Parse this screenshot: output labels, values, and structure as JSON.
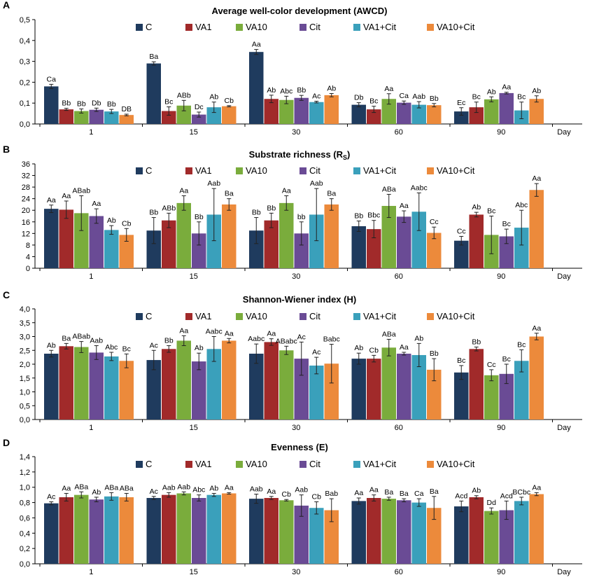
{
  "colors": {
    "C": "#1f3b5e",
    "VA1": "#a12a2a",
    "VA10": "#7aac3c",
    "Cit": "#6a4b95",
    "VA1+Cit": "#3aa0bb",
    "VA10+Cit": "#ec8a3b"
  },
  "chart_data": [
    {
      "panel": "A",
      "type": "bar",
      "title": "Average well-color development (AWCD)",
      "title_sub": "",
      "title_after": "",
      "categories": [
        "1",
        "15",
        "30",
        "60",
        "90"
      ],
      "xlabel": "Day",
      "ylim": [
        0,
        0.5
      ],
      "yticks": [
        "0,0",
        "0,1",
        "0,2",
        "0,3",
        "0,4",
        "0,5"
      ],
      "series": [
        {
          "name": "C",
          "values": [
            0.18,
            0.29,
            0.345,
            0.092,
            0.06
          ],
          "errors": [
            0.01,
            0.008,
            0.012,
            0.01,
            0.018
          ],
          "labels": [
            "Ca",
            "Ba",
            "Aa",
            "Db",
            "Ec"
          ]
        },
        {
          "name": "VA1",
          "values": [
            0.07,
            0.062,
            0.12,
            0.07,
            0.08
          ],
          "errors": [
            0.005,
            0.02,
            0.018,
            0.015,
            0.025
          ],
          "labels": [
            "Bb",
            "Bc",
            "Ab",
            "Bc",
            "Bc"
          ]
        },
        {
          "name": "VA10",
          "values": [
            0.062,
            0.088,
            0.115,
            0.12,
            0.118
          ],
          "errors": [
            0.01,
            0.025,
            0.018,
            0.025,
            0.012
          ],
          "labels": [
            "Bb",
            "ABb",
            "Abc",
            "Aa",
            "Ab"
          ]
        },
        {
          "name": "Cit",
          "values": [
            0.068,
            0.045,
            0.125,
            0.102,
            0.148
          ],
          "errors": [
            0.008,
            0.012,
            0.012,
            0.008,
            0.004
          ],
          "labels": [
            "Db",
            "Dc",
            "Bb",
            "Ca",
            "Aa"
          ]
        },
        {
          "name": "VA1+Cit",
          "values": [
            0.06,
            0.08,
            0.105,
            0.092,
            0.065
          ],
          "errors": [
            0.01,
            0.025,
            0.004,
            0.015,
            0.04
          ],
          "labels": [
            "Bb",
            "Ab",
            "Ac",
            "Aab",
            "Bc"
          ]
        },
        {
          "name": "VA10+Cit",
          "values": [
            0.043,
            0.085,
            0.138,
            0.09,
            0.12
          ],
          "errors": [
            0.004,
            0.003,
            0.008,
            0.008,
            0.015
          ],
          "labels": [
            "DB",
            "Cb",
            "Ab",
            "Bb",
            "Ab"
          ]
        }
      ]
    },
    {
      "panel": "B",
      "type": "bar",
      "title": "Substrate richness (R",
      "title_sub": "S",
      "title_after": ")",
      "categories": [
        "1",
        "15",
        "30",
        "60",
        "90"
      ],
      "xlabel": "Day",
      "ylim": [
        0,
        36
      ],
      "yticks": [
        "0",
        "4",
        "8",
        "12",
        "16",
        "20",
        "24",
        "28",
        "32",
        "36"
      ],
      "series": [
        {
          "name": "C",
          "values": [
            20.5,
            13,
            13,
            14.5,
            9.5
          ],
          "errors": [
            1.3,
            4.5,
            4.5,
            1.8,
            1.5
          ],
          "labels": [
            "Aa",
            "Bb",
            "Bb",
            "Bb",
            "Cc"
          ]
        },
        {
          "name": "VA1",
          "values": [
            20.2,
            16.5,
            16.5,
            13.5,
            18.5
          ],
          "errors": [
            3,
            2.5,
            2.5,
            3,
            0.8
          ],
          "labels": [
            "Aa",
            "ABb",
            "Bb",
            "Bbc",
            "Ab"
          ]
        },
        {
          "name": "VA10",
          "values": [
            19,
            22.5,
            22.5,
            21.5,
            11.5
          ],
          "errors": [
            6,
            2.5,
            2.5,
            4,
            6.5
          ],
          "labels": [
            "ABab",
            "Aa",
            "Aa",
            "ABa",
            "Bc"
          ]
        },
        {
          "name": "Cit",
          "values": [
            18,
            12,
            12,
            17.8,
            11
          ],
          "errors": [
            2.5,
            4,
            4,
            2,
            2.5
          ],
          "labels": [
            "Aa",
            "Bb",
            "bb",
            "Aa",
            "Bc"
          ]
        },
        {
          "name": "VA1+Cit",
          "values": [
            13.2,
            18.5,
            18.5,
            19.5,
            14
          ],
          "errors": [
            1.5,
            9,
            9,
            6.5,
            6
          ],
          "labels": [
            "Ab",
            "Aab",
            "Aab",
            "Aabc",
            "Abc"
          ]
        },
        {
          "name": "VA10+Cit",
          "values": [
            11.5,
            22,
            22,
            12.2,
            27
          ],
          "errors": [
            2.2,
            2,
            2,
            2,
            2.2
          ],
          "labels": [
            "Cb",
            "Ba",
            "Ba",
            "Cc",
            "Aa"
          ]
        }
      ]
    },
    {
      "panel": "C",
      "type": "bar",
      "title": "Shannon-Wiener index (H)",
      "title_sub": "",
      "title_after": "",
      "categories": [
        "1",
        "15",
        "30",
        "60",
        "90"
      ],
      "xlabel": "Day",
      "ylim": [
        0,
        4
      ],
      "yticks": [
        "0,0",
        "0,5",
        "1,0",
        "1,5",
        "2,0",
        "2,5",
        "3,0",
        "3,5",
        "4,0"
      ],
      "series": [
        {
          "name": "C",
          "values": [
            2.38,
            2.15,
            2.38,
            2.2,
            1.7
          ],
          "errors": [
            0.12,
            0.35,
            0.35,
            0.2,
            0.25
          ],
          "labels": [
            "Ab",
            "Ac",
            "Aabc",
            "Ab",
            "Bc"
          ]
        },
        {
          "name": "VA1",
          "values": [
            2.65,
            2.55,
            2.8,
            2.2,
            2.55
          ],
          "errors": [
            0.1,
            0.12,
            0.12,
            0.12,
            0.07
          ],
          "labels": [
            "Ba",
            "Bb",
            "Aa",
            "Cb",
            "Bb"
          ]
        },
        {
          "name": "VA10",
          "values": [
            2.62,
            2.85,
            2.5,
            2.6,
            1.6
          ],
          "errors": [
            0.2,
            0.18,
            0.15,
            0.3,
            0.2
          ],
          "labels": [
            "ABab",
            "Aa",
            "ABabc",
            "ABa",
            "Cc"
          ]
        },
        {
          "name": "Cit",
          "values": [
            2.42,
            2.1,
            2.2,
            2.38,
            1.65
          ],
          "errors": [
            0.25,
            0.3,
            0.6,
            0.05,
            0.35
          ],
          "labels": [
            "Aab",
            "Ab",
            "Ac",
            "Aa",
            "Bc"
          ]
        },
        {
          "name": "VA1+Cit",
          "values": [
            2.28,
            2.55,
            1.95,
            2.33,
            2.12
          ],
          "errors": [
            0.15,
            0.45,
            0.3,
            0.42,
            0.4
          ],
          "labels": [
            "Abc",
            "Aabc",
            "Ac",
            "Ab",
            "Bc"
          ]
        },
        {
          "name": "VA10+Cit",
          "values": [
            2.12,
            2.85,
            2.02,
            1.8,
            3.0
          ],
          "errors": [
            0.25,
            0.08,
            0.7,
            0.4,
            0.12
          ],
          "labels": [
            "Bc",
            "Aa",
            "Babc",
            "Bb",
            "Aa"
          ]
        }
      ]
    },
    {
      "panel": "D",
      "type": "bar",
      "title": "Evenness (E)",
      "title_sub": "",
      "title_after": "",
      "categories": [
        "1",
        "15",
        "30",
        "60",
        "90"
      ],
      "xlabel": "Day",
      "ylim": [
        0,
        1.4
      ],
      "yticks": [
        "0,0",
        "0,2",
        "0,4",
        "0,6",
        "0,8",
        "1,0",
        "1,2",
        "1,4"
      ],
      "series": [
        {
          "name": "C",
          "values": [
            0.79,
            0.86,
            0.85,
            0.82,
            0.75
          ],
          "errors": [
            0.02,
            0.02,
            0.06,
            0.04,
            0.07
          ],
          "labels": [
            "Ac",
            "Ac",
            "Aab",
            "Aa",
            "Acd"
          ]
        },
        {
          "name": "VA1",
          "values": [
            0.87,
            0.9,
            0.86,
            0.86,
            0.87
          ],
          "errors": [
            0.05,
            0.03,
            0.02,
            0.04,
            0.02
          ],
          "labels": [
            "Aa",
            "Aab",
            "Aa",
            "Aa",
            "Ab"
          ]
        },
        {
          "name": "VA10",
          "values": [
            0.9,
            0.92,
            0.83,
            0.85,
            0.69
          ],
          "errors": [
            0.04,
            0.02,
            0.01,
            0.02,
            0.04
          ],
          "labels": [
            "ABa",
            "Aab",
            "Cb",
            "Ba",
            "Dd"
          ]
        },
        {
          "name": "Cit",
          "values": [
            0.84,
            0.86,
            0.76,
            0.83,
            0.7
          ],
          "errors": [
            0.03,
            0.04,
            0.14,
            0.02,
            0.12
          ],
          "labels": [
            "Ab",
            "Abc",
            "Aab",
            "Ba",
            "Acd"
          ]
        },
        {
          "name": "VA1+Cit",
          "values": [
            0.88,
            0.9,
            0.73,
            0.8,
            0.82
          ],
          "errors": [
            0.05,
            0.02,
            0.08,
            0.05,
            0.05
          ],
          "labels": [
            "ABa",
            "Ab",
            "Cb",
            "Ca",
            "BCbc"
          ]
        },
        {
          "name": "VA10+Cit",
          "values": [
            0.87,
            0.92,
            0.7,
            0.73,
            0.91
          ],
          "errors": [
            0.05,
            0.01,
            0.15,
            0.15,
            0.02
          ],
          "labels": [
            "ABa",
            "Aa",
            "Bab",
            "Ba",
            "Aa"
          ]
        }
      ]
    }
  ]
}
